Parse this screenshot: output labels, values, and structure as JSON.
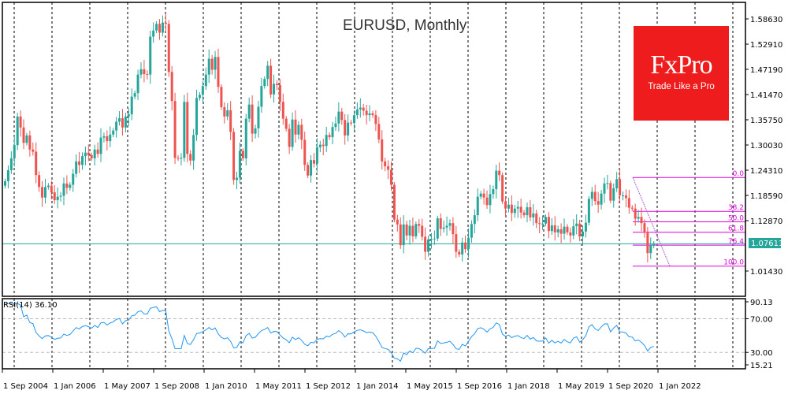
{
  "title": "EURUSD, Monthly",
  "logo": {
    "brand": "FxPro",
    "tagline": "Trade Like a Pro",
    "color": "#ee1c1c"
  },
  "colors": {
    "bull": "#26a69a",
    "bear": "#ef5350",
    "rsi": "#2196f3",
    "fib": "#e000e0",
    "price_line": "#26a69a"
  },
  "current_price": "1.07611",
  "rsi": {
    "label": "RSI(14) 36.10",
    "period": 14,
    "value": 36.1
  },
  "price_axis": [
    "1.58630",
    "1.52910",
    "1.47190",
    "1.41470",
    "1.35750",
    "1.30030",
    "1.24310",
    "1.18590",
    "1.12870",
    "1.01430"
  ],
  "rsi_axis": [
    "90.13",
    "70.00",
    "30.00",
    "15.21"
  ],
  "time_axis": [
    "1 Sep 2004",
    "1 Jan 2006",
    "1 May 2007",
    "1 Sep 2008",
    "1 Jan 2010",
    "1 May 2011",
    "1 Sep 2012",
    "1 Jan 2014",
    "1 May 2015",
    "1 Sep 2016",
    "1 Jan 2018",
    "1 May 2019",
    "1 Sep 2020",
    "1 Jan 2022"
  ],
  "fib_levels": [
    {
      "label": "0.0",
      "price": 1.2266
    },
    {
      "label": "38.2",
      "price": 1.1497
    },
    {
      "label": "50.0",
      "price": 1.126
    },
    {
      "label": "61.8",
      "price": 1.1023
    },
    {
      "label": "76.4",
      "price": 1.073
    },
    {
      "label": "100.0",
      "price": 1.0255
    }
  ],
  "chart_data": [
    {
      "type": "candlestick",
      "title": "EURUSD, Monthly",
      "xlabel": "",
      "ylabel": "",
      "ylim": [
        0.98,
        1.61
      ],
      "x_range": [
        "2004-07",
        "2022-04"
      ],
      "series": [
        {
          "name": "EURUSD monthly close (approx.)",
          "closes": [
            1.218,
            1.243,
            1.27,
            1.3,
            1.365,
            1.34,
            1.305,
            1.322,
            1.29,
            1.285,
            1.232,
            1.205,
            1.181,
            1.205,
            1.208,
            1.193,
            1.175,
            1.183,
            1.185,
            1.213,
            1.203,
            1.21,
            1.235,
            1.263,
            1.255,
            1.275,
            1.283,
            1.277,
            1.27,
            1.29,
            1.28,
            1.317,
            1.32,
            1.309,
            1.324,
            1.333,
            1.353,
            1.361,
            1.34,
            1.365,
            1.37,
            1.41,
            1.418,
            1.46,
            1.472,
            1.461,
            1.46,
            1.546,
            1.56,
            1.575,
            1.555,
            1.578,
            1.575,
            1.466,
            1.4,
            1.271,
            1.27,
            1.271,
            1.398,
            1.28,
            1.265,
            1.323,
            1.407,
            1.414,
            1.434,
            1.46,
            1.496,
            1.471,
            1.5,
            1.432,
            1.386,
            1.365,
            1.379,
            1.33,
            1.221,
            1.226,
            1.287,
            1.27,
            1.36,
            1.392,
            1.326,
            1.338,
            1.387,
            1.434,
            1.45,
            1.48,
            1.415,
            1.439,
            1.436,
            1.398,
            1.36,
            1.337,
            1.296,
            1.358,
            1.324,
            1.346,
            1.312,
            1.255,
            1.231,
            1.266,
            1.258,
            1.295,
            1.301,
            1.298,
            1.323,
            1.318,
            1.341,
            1.349,
            1.376,
            1.357,
            1.322,
            1.351,
            1.35,
            1.368,
            1.381,
            1.385,
            1.378,
            1.368,
            1.372,
            1.368,
            1.348,
            1.313,
            1.263,
            1.252,
            1.244,
            1.21,
            1.131,
            1.12,
            1.073,
            1.12,
            1.095,
            1.117,
            1.093,
            1.121,
            1.117,
            1.092,
            1.058,
            1.086,
            1.087,
            1.088,
            1.134,
            1.11,
            1.113,
            1.117,
            1.123,
            1.098,
            1.058,
            1.052,
            1.079,
            1.064,
            1.09,
            1.121,
            1.141,
            1.183,
            1.19,
            1.181,
            1.164,
            1.189,
            1.2,
            1.242,
            1.232,
            1.172,
            1.156,
            1.165,
            1.146,
            1.156,
            1.16,
            1.147,
            1.141,
            1.159,
            1.136,
            1.145,
            1.123,
            1.121,
            1.122,
            1.137,
            1.105,
            1.118,
            1.102,
            1.109,
            1.099,
            1.115,
            1.102,
            1.095,
            1.116,
            1.122,
            1.093,
            1.104,
            1.124,
            1.178,
            1.194,
            1.173,
            1.165,
            1.19,
            1.213,
            1.214,
            1.174,
            1.202,
            1.223,
            1.186,
            1.186,
            1.18,
            1.158,
            1.156,
            1.133,
            1.137,
            1.123,
            1.101,
            1.055,
            1.072,
            1.076
          ]
        }
      ],
      "current_price": 1.07611,
      "price_axis_ticks": [
        1.5863,
        1.5291,
        1.4719,
        1.4147,
        1.3575,
        1.3003,
        1.2431,
        1.1859,
        1.1287,
        1.0143
      ],
      "time_axis_ticks": [
        "1 Sep 2004",
        "1 Jan 2006",
        "1 May 2007",
        "1 Sep 2008",
        "1 Jan 2010",
        "1 May 2011",
        "1 Sep 2012",
        "1 Jan 2014",
        "1 May 2015",
        "1 Sep 2016",
        "1 Jan 2018",
        "1 May 2019",
        "1 Sep 2020",
        "1 Jan 2022"
      ],
      "annotations": [
        "Fibonacci retracement 0.0 / 38.2 / 50.0 / 61.8 / 76.4 / 100.0 from Jan 2021 high to Mar 2022 low",
        "Horizontal line at 1.07611"
      ],
      "grid": "vertical dashed"
    },
    {
      "type": "line",
      "title": "RSI(14) 36.10",
      "ylim": [
        15.21,
        90.13
      ],
      "levels": [
        70,
        30
      ],
      "series": [
        {
          "name": "RSI(14)",
          "last_value": 36.1
        }
      ],
      "y_axis_ticks": [
        90.13,
        70.0,
        30.0,
        15.21
      ]
    }
  ]
}
